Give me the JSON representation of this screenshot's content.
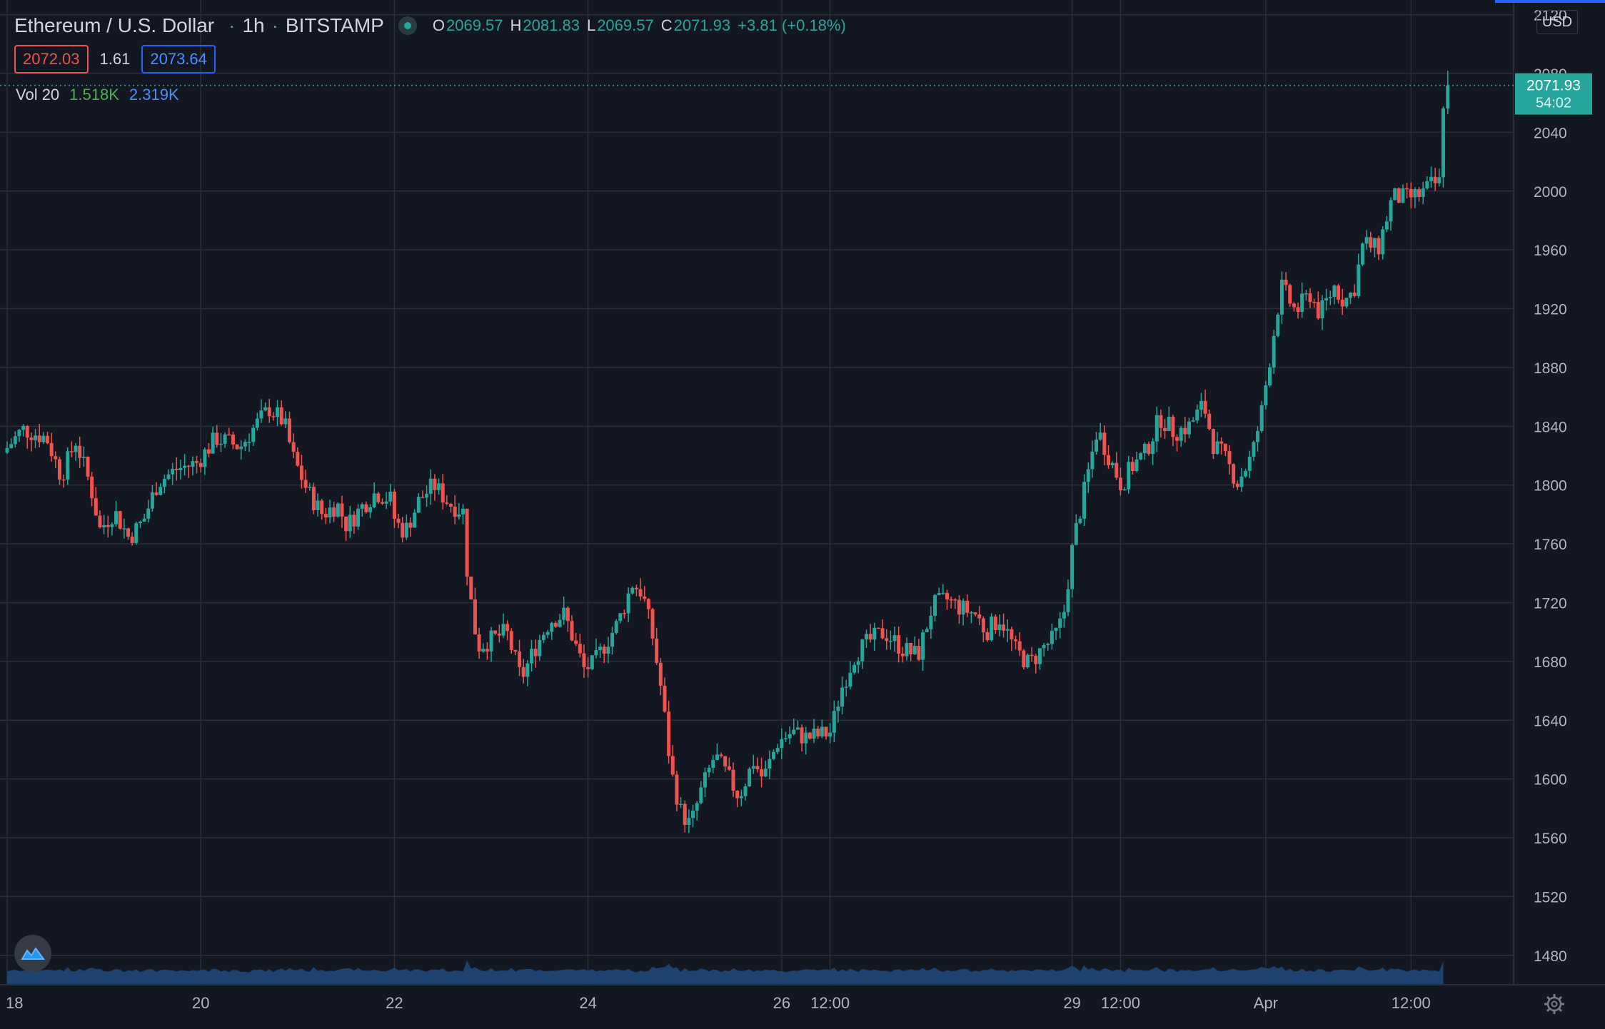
{
  "header": {
    "symbol": "Ethereum / U.S. Dollar",
    "interval": "1h",
    "exchange": "BITSTAMP",
    "open_label": "O",
    "open": "2069.57",
    "high_label": "H",
    "high": "2081.83",
    "low_label": "L",
    "low": "2069.57",
    "close_label": "C",
    "close": "2071.93",
    "change": "+3.81 (+0.18%)"
  },
  "quote": {
    "bid": "2072.03",
    "spread": "1.61",
    "ask": "2073.64"
  },
  "volume": {
    "label": "Vol 20",
    "value": "1.518K",
    "ma": "2.319K"
  },
  "currency": "USD",
  "last_price": {
    "price": "2071.93",
    "countdown": "54:02"
  },
  "colors": {
    "up": "#26a69a",
    "down": "#ef5350",
    "volume_area": "#1e4a7a",
    "grid": "#2a2e39",
    "background": "#131722"
  },
  "icons": {
    "logo": "tradingview-logo-icon",
    "settings": "gear-icon",
    "live": "live-status-dot-icon"
  },
  "chart_data": {
    "type": "candlestick",
    "title": "Ethereum / U.S. Dollar · 1h · BITSTAMP",
    "ylim": [
      1460,
      2130
    ],
    "y_ticks": [
      2120,
      2080,
      2040,
      2000,
      1960,
      1920,
      1880,
      1840,
      1800,
      1760,
      1720,
      1680,
      1640,
      1600,
      1560,
      1520,
      1480
    ],
    "x_ticks": [
      "18",
      "20",
      "22",
      "24",
      "26",
      "12:00",
      "29",
      "12:00",
      "Apr",
      "12:00"
    ],
    "x_range_days": [
      18.0,
      33.56
    ],
    "close_path": [
      [
        18.0,
        1822
      ],
      [
        18.2,
        1838
      ],
      [
        18.45,
        1832
      ],
      [
        18.6,
        1806
      ],
      [
        18.75,
        1830
      ],
      [
        18.9,
        1800
      ],
      [
        19.0,
        1770
      ],
      [
        19.15,
        1782
      ],
      [
        19.3,
        1764
      ],
      [
        19.45,
        1776
      ],
      [
        19.6,
        1802
      ],
      [
        19.8,
        1811
      ],
      [
        20.0,
        1815
      ],
      [
        20.2,
        1832
      ],
      [
        20.45,
        1826
      ],
      [
        20.6,
        1840
      ],
      [
        20.75,
        1852
      ],
      [
        20.9,
        1843
      ],
      [
        21.0,
        1818
      ],
      [
        21.15,
        1795
      ],
      [
        21.3,
        1780
      ],
      [
        21.45,
        1787
      ],
      [
        21.55,
        1772
      ],
      [
        21.7,
        1785
      ],
      [
        21.85,
        1795
      ],
      [
        22.0,
        1790
      ],
      [
        22.05,
        1775
      ],
      [
        22.15,
        1768
      ],
      [
        22.3,
        1790
      ],
      [
        22.45,
        1800
      ],
      [
        22.6,
        1788
      ],
      [
        22.75,
        1782
      ],
      [
        22.8,
        1735
      ],
      [
        22.9,
        1690
      ],
      [
        23.05,
        1695
      ],
      [
        23.2,
        1700
      ],
      [
        23.35,
        1668
      ],
      [
        23.5,
        1690
      ],
      [
        23.65,
        1708
      ],
      [
        23.8,
        1712
      ],
      [
        23.9,
        1693
      ],
      [
        24.0,
        1675
      ],
      [
        24.1,
        1678
      ],
      [
        24.2,
        1690
      ],
      [
        24.35,
        1706
      ],
      [
        24.5,
        1733
      ],
      [
        24.6,
        1727
      ],
      [
        24.7,
        1700
      ],
      [
        24.8,
        1660
      ],
      [
        24.9,
        1605
      ],
      [
        25.0,
        1578
      ],
      [
        25.1,
        1568
      ],
      [
        25.2,
        1590
      ],
      [
        25.35,
        1616
      ],
      [
        25.5,
        1600
      ],
      [
        25.6,
        1588
      ],
      [
        25.75,
        1612
      ],
      [
        25.85,
        1600
      ],
      [
        26.0,
        1625
      ],
      [
        26.15,
        1632
      ],
      [
        26.3,
        1628
      ],
      [
        26.45,
        1630
      ],
      [
        26.55,
        1632
      ],
      [
        26.65,
        1660
      ],
      [
        26.8,
        1685
      ],
      [
        26.95,
        1694
      ],
      [
        27.1,
        1700
      ],
      [
        27.3,
        1688
      ],
      [
        27.45,
        1684
      ],
      [
        27.6,
        1718
      ],
      [
        27.75,
        1722
      ],
      [
        27.9,
        1716
      ],
      [
        28.05,
        1712
      ],
      [
        28.15,
        1700
      ],
      [
        28.3,
        1710
      ],
      [
        28.45,
        1688
      ],
      [
        28.6,
        1678
      ],
      [
        28.75,
        1690
      ],
      [
        28.85,
        1695
      ],
      [
        28.95,
        1710
      ],
      [
        29.05,
        1760
      ],
      [
        29.15,
        1790
      ],
      [
        29.3,
        1838
      ],
      [
        29.45,
        1815
      ],
      [
        29.55,
        1800
      ],
      [
        29.65,
        1812
      ],
      [
        29.8,
        1822
      ],
      [
        29.95,
        1846
      ],
      [
        30.1,
        1836
      ],
      [
        30.25,
        1840
      ],
      [
        30.4,
        1855
      ],
      [
        30.5,
        1828
      ],
      [
        30.6,
        1820
      ],
      [
        30.75,
        1802
      ],
      [
        30.9,
        1820
      ],
      [
        31.0,
        1850
      ],
      [
        31.1,
        1893
      ],
      [
        31.2,
        1935
      ],
      [
        31.35,
        1918
      ],
      [
        31.5,
        1930
      ],
      [
        31.6,
        1916
      ],
      [
        31.75,
        1935
      ],
      [
        31.85,
        1925
      ],
      [
        31.95,
        1932
      ],
      [
        32.05,
        1965
      ],
      [
        32.2,
        1960
      ],
      [
        32.35,
        1996
      ],
      [
        32.5,
        1995
      ],
      [
        32.65,
        1998
      ],
      [
        32.75,
        2004
      ],
      [
        32.85,
        2006
      ],
      [
        32.88,
        2071.93
      ]
    ]
  }
}
